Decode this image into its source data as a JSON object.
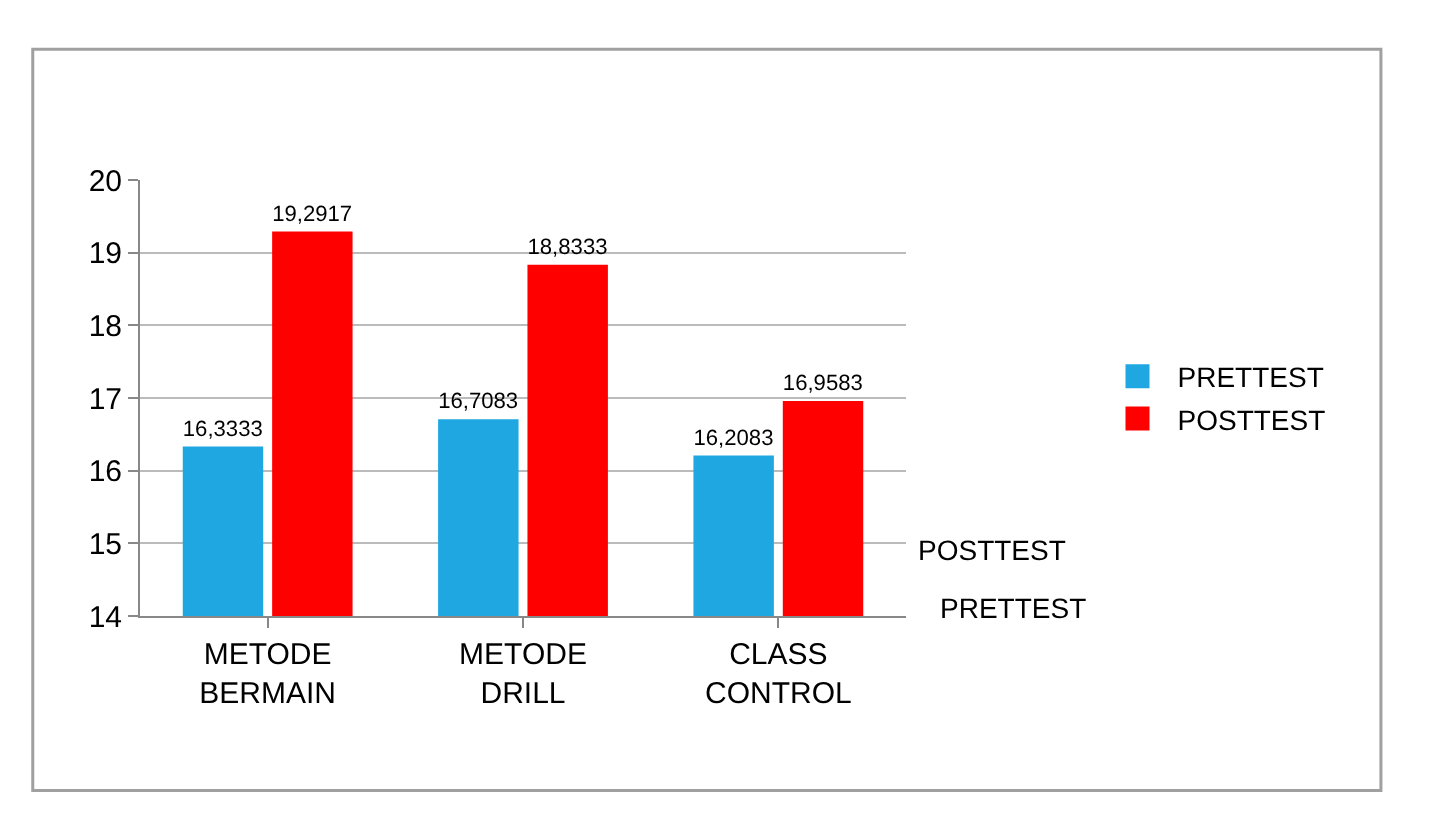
{
  "chart_data": {
    "type": "bar",
    "categories": [
      "METODE BERMAIN",
      "METODE DRILL",
      "CLASS CONTROL"
    ],
    "series": [
      {
        "name": "PRETTEST",
        "color": "#1ea7e1",
        "values": [
          16.3333,
          16.7083,
          16.2083
        ],
        "value_labels": [
          "16,3333",
          "16,7083",
          "16,2083"
        ]
      },
      {
        "name": "POSTTEST",
        "color": "#ff0000",
        "values": [
          19.2917,
          18.8333,
          16.9583
        ],
        "value_labels": [
          "19,2917",
          "18,8333",
          "16,9583"
        ]
      }
    ],
    "ylim": [
      14,
      20
    ],
    "yticks": [
      14,
      15,
      16,
      17,
      18,
      19,
      20
    ],
    "grid": "y",
    "legend": "right"
  }
}
